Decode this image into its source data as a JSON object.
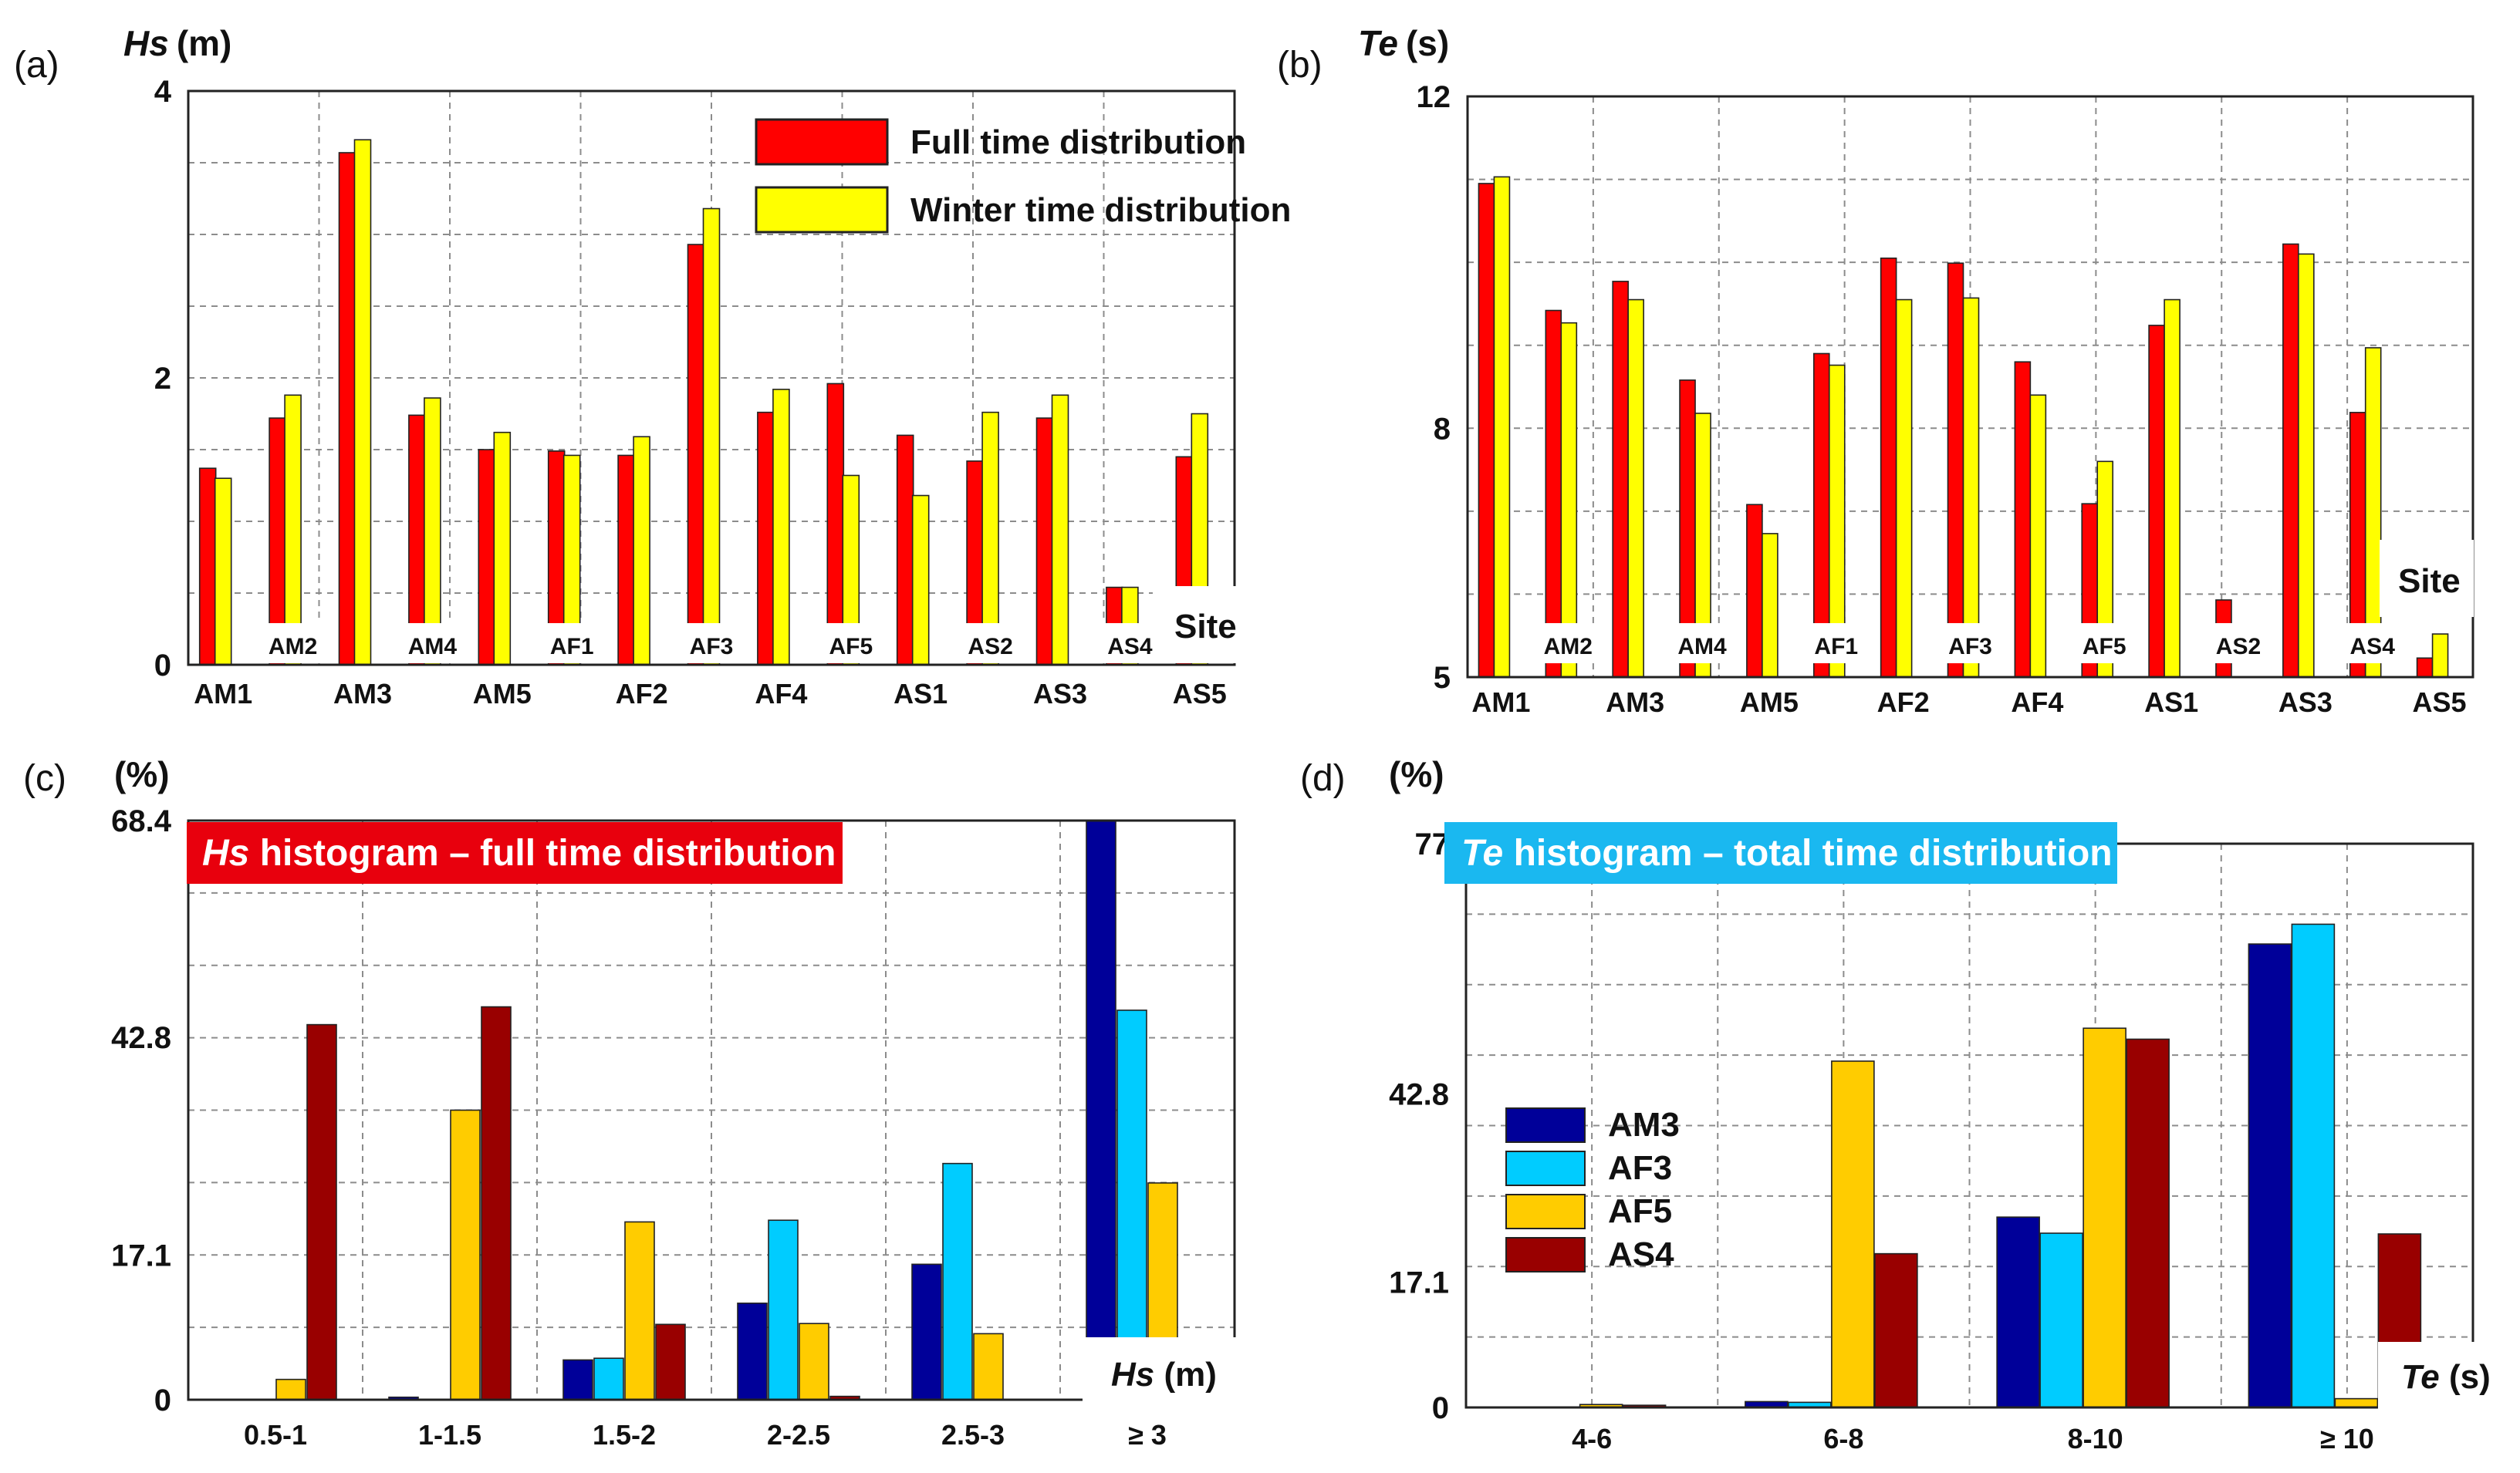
{
  "chart_data": [
    {
      "id": "a",
      "type": "bar",
      "panel_label": "(a)",
      "ylabel_var": "Hs",
      "ylabel_unit": "(m)",
      "xlabel": "Site",
      "yticks": [
        "0",
        "2",
        "4"
      ],
      "ylim": [
        0,
        4
      ],
      "categories": [
        "AM1",
        "AM2",
        "AM3",
        "AM4",
        "AM5",
        "AF1",
        "AF2",
        "AF3",
        "AF4",
        "AF5",
        "AS1",
        "AS2",
        "AS3",
        "AS4",
        "AS5"
      ],
      "legend_position": "top-right",
      "series": [
        {
          "name": "Full time distribution",
          "color": "#ff0000",
          "values": [
            1.37,
            1.72,
            3.57,
            1.74,
            1.5,
            1.49,
            1.46,
            2.93,
            1.76,
            1.96,
            1.6,
            1.42,
            1.72,
            0.54,
            1.45
          ]
        },
        {
          "name": "Winter time distribution",
          "color": "#ffff00",
          "values": [
            1.3,
            1.88,
            3.66,
            1.86,
            1.62,
            1.46,
            1.59,
            3.18,
            1.92,
            1.32,
            1.18,
            1.76,
            1.88,
            0.54,
            1.75
          ]
        }
      ]
    },
    {
      "id": "b",
      "type": "bar",
      "panel_label": "(b)",
      "ylabel_var": "Te",
      "ylabel_unit": "(s)",
      "xlabel": "Site",
      "yticks": [
        "5",
        "8",
        "12"
      ],
      "ylim": [
        5,
        12
      ],
      "categories": [
        "AM1",
        "AM2",
        "AM3",
        "AM4",
        "AM5",
        "AF1",
        "AF2",
        "AF3",
        "AF4",
        "AF5",
        "AS1",
        "AS2",
        "AS3",
        "AS4",
        "AS5"
      ],
      "series": [
        {
          "name": "Full time distribution",
          "color": "#ff0000",
          "values": [
            10.95,
            9.42,
            9.77,
            8.58,
            7.08,
            8.9,
            10.05,
            9.99,
            8.8,
            7.09,
            9.24,
            5.93,
            10.22,
            8.19,
            5.23
          ]
        },
        {
          "name": "Winter time distribution",
          "color": "#ffff00",
          "values": [
            11.03,
            9.27,
            9.55,
            8.18,
            6.73,
            8.76,
            9.55,
            9.57,
            8.4,
            7.6,
            9.55,
            5.0,
            10.1,
            8.97,
            5.52
          ]
        }
      ]
    },
    {
      "id": "c",
      "type": "bar",
      "panel_label": "(c)",
      "ylabel_unit": "(%)",
      "title_var": "Hs",
      "title_rest": " histogram – full time distribution",
      "title_color": "#e8000d",
      "xlabel_var": "Hs",
      "xlabel_unit": " (m)",
      "yticks": [
        "0",
        "17.1",
        "42.8",
        "68.4"
      ],
      "ylim": [
        0,
        68.4
      ],
      "categories": [
        "0.5-1",
        "1-1.5",
        "1.5-2",
        "2-2.5",
        "2.5-3",
        "≥ 3"
      ],
      "series": [
        {
          "name": "AM3",
          "color": "#000099",
          "values": [
            0.0,
            0.3,
            4.7,
            11.4,
            16.0,
            68.4
          ]
        },
        {
          "name": "AF3",
          "color": "#00ccff",
          "values": [
            0.0,
            0.0,
            4.9,
            21.2,
            27.9,
            46.0
          ]
        },
        {
          "name": "AF5",
          "color": "#ffcc00",
          "values": [
            2.4,
            34.2,
            21.0,
            9.0,
            7.8,
            25.6
          ]
        },
        {
          "name": "AS4",
          "color": "#990000",
          "values": [
            44.3,
            46.4,
            8.9,
            0.4,
            0.0,
            0.0
          ]
        }
      ]
    },
    {
      "id": "d",
      "type": "bar",
      "panel_label": "(d)",
      "ylabel_unit": "(%)",
      "title_var": "Te",
      "title_rest": " histogram – total time distribution",
      "title_color": "#1ab8f0",
      "xlabel_var": "Te",
      "xlabel_unit": " (s)",
      "yticks": [
        "0",
        "17.1",
        "42.8",
        "77"
      ],
      "ylim": [
        0,
        77
      ],
      "categories": [
        "4-6",
        "6-8",
        "8-10",
        "≥ 10"
      ],
      "legend_position": "center-left",
      "series": [
        {
          "name": "AM3",
          "color": "#000099",
          "values": [
            0.0,
            0.8,
            26.0,
            63.3
          ]
        },
        {
          "name": "AF3",
          "color": "#00ccff",
          "values": [
            0.0,
            0.7,
            23.8,
            66.0
          ]
        },
        {
          "name": "AF5",
          "color": "#ffcc00",
          "values": [
            0.4,
            47.3,
            51.8,
            1.2
          ]
        },
        {
          "name": "AS4",
          "color": "#990000",
          "values": [
            0.3,
            21.0,
            50.3,
            23.7
          ]
        }
      ]
    }
  ]
}
